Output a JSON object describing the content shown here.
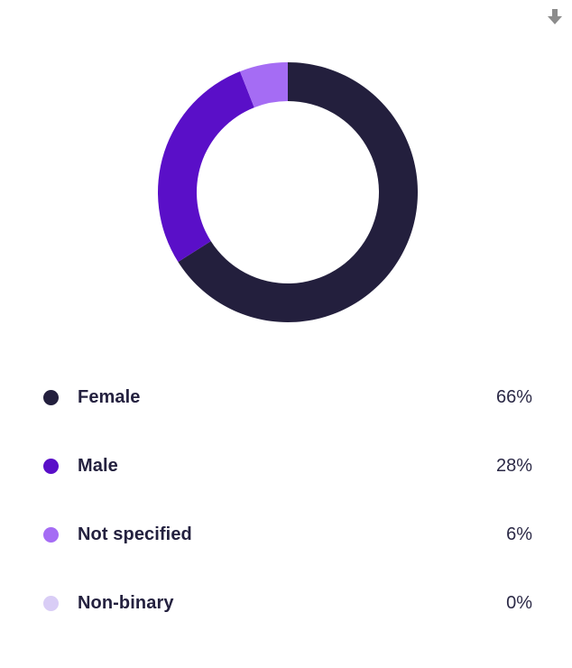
{
  "toolbar": {
    "download_icon": "download-arrow-icon"
  },
  "colors": {
    "Female": "#231f3d",
    "Male": "#5a0fc8",
    "Not specified": "#a56cf4",
    "Non-binary": "#d9cdf6"
  },
  "chart_data": {
    "type": "pie",
    "variant": "donut",
    "categories": [
      "Female",
      "Male",
      "Not specified",
      "Non-binary"
    ],
    "values": [
      66,
      28,
      6,
      0
    ],
    "unit": "%",
    "value_labels": [
      "66%",
      "28%",
      "6%",
      "0%"
    ],
    "legend_position": "bottom"
  }
}
